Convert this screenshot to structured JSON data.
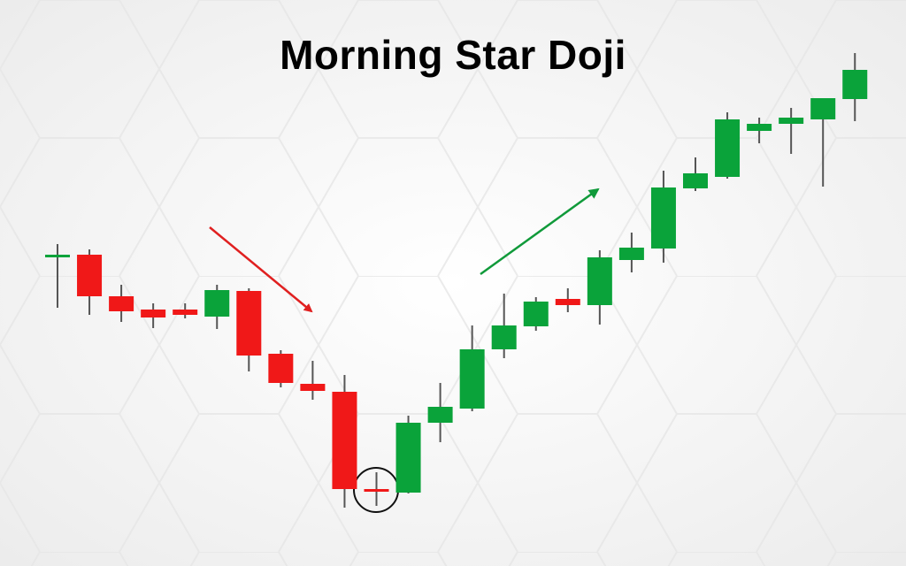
{
  "chart_data": {
    "type": "candlestick",
    "title": "Morning Star Doji",
    "up_color": "#0aa33a",
    "down_color": "#f01818",
    "wick_color": "#555555",
    "open": [
      350,
      352,
      305,
      290,
      290,
      282,
      311,
      240,
      206,
      197,
      87,
      83,
      162,
      178,
      245,
      271,
      302,
      295,
      346,
      359,
      427,
      440,
      492,
      500,
      505,
      528
    ],
    "close": [
      352,
      305,
      288,
      281,
      284,
      312,
      238,
      207,
      198,
      87,
      85,
      162,
      180,
      245,
      272,
      299,
      295,
      349,
      360,
      428,
      444,
      505,
      500,
      507,
      529,
      561
    ],
    "high": [
      364,
      358,
      318,
      297,
      297,
      318,
      314,
      244,
      232,
      216,
      106,
      170,
      207,
      272,
      308,
      304,
      314,
      357,
      377,
      447,
      462,
      513,
      507,
      518,
      529,
      580
    ],
    "low": [
      292,
      284,
      276,
      269,
      280,
      268,
      220,
      202,
      188,
      66,
      68,
      82,
      140,
      175,
      235,
      266,
      287,
      273,
      332,
      343,
      424,
      438,
      478,
      466,
      429,
      503
    ]
  }
}
